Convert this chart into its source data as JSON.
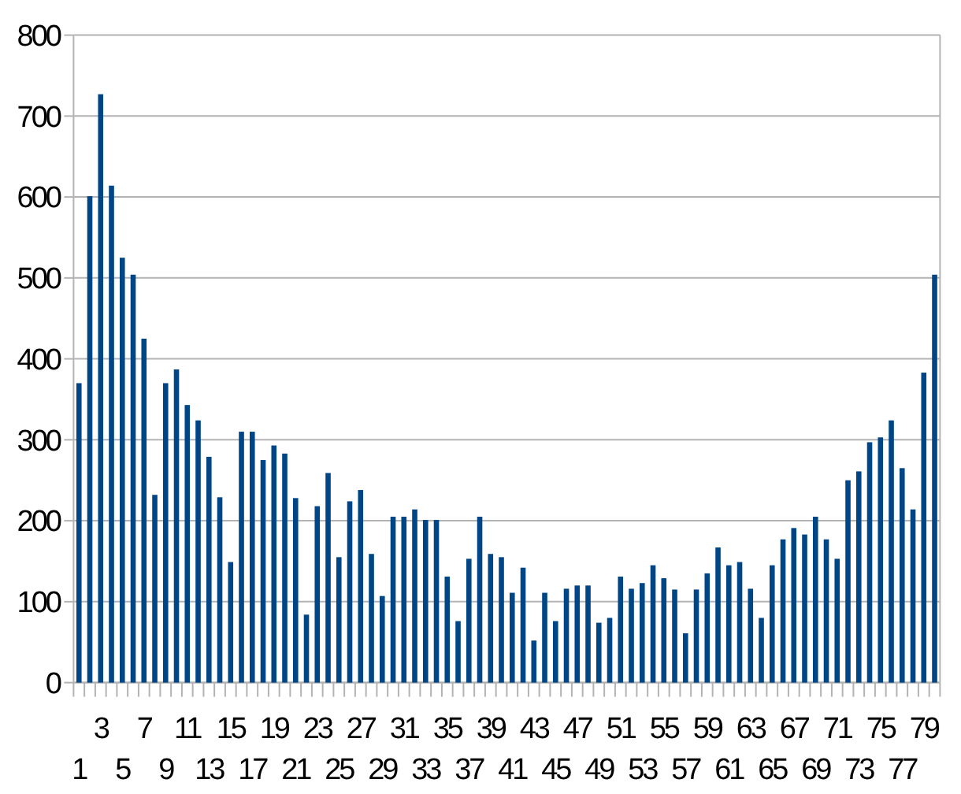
{
  "chart_data": {
    "type": "bar",
    "categories": [
      "1",
      null,
      "3",
      null,
      "5",
      null,
      "7",
      null,
      "9",
      null,
      "11",
      null,
      "13",
      null,
      "15",
      null,
      "17",
      null,
      "19",
      null,
      "21",
      null,
      "23",
      null,
      "25",
      null,
      "27",
      null,
      "29",
      null,
      "31",
      null,
      "33",
      null,
      "35",
      null,
      "37",
      null,
      "39",
      null,
      "41",
      null,
      "43",
      null,
      "45",
      null,
      "47",
      null,
      "49",
      null,
      "51",
      null,
      "53",
      null,
      "55",
      null,
      "57",
      null,
      "59",
      null,
      "61",
      null,
      "63",
      null,
      "65",
      null,
      "67",
      null,
      "69",
      null,
      "71",
      null,
      "73",
      null,
      "75",
      null,
      "77",
      null,
      "79",
      null
    ],
    "values": [
      370,
      601,
      727,
      614,
      525,
      504,
      425,
      232,
      370,
      387,
      343,
      324,
      279,
      229,
      149,
      310,
      310,
      275,
      293,
      283,
      228,
      84,
      218,
      259,
      155,
      224,
      238,
      159,
      107,
      205,
      205,
      214,
      201,
      201,
      131,
      76,
      153,
      205,
      159,
      155,
      111,
      142,
      52,
      111,
      76,
      116,
      120,
      120,
      74,
      80,
      131,
      116,
      123,
      145,
      129,
      115,
      61,
      115,
      135,
      167,
      145,
      149,
      116,
      80,
      145,
      177,
      191,
      183,
      205,
      177,
      153,
      250,
      261,
      297,
      303,
      324,
      265,
      214,
      383,
      504
    ],
    "color": "#004586",
    "ylim": [
      0,
      800
    ],
    "yticks": [
      0,
      100,
      200,
      300,
      400,
      500,
      600,
      700,
      800
    ],
    "grid": "y"
  }
}
